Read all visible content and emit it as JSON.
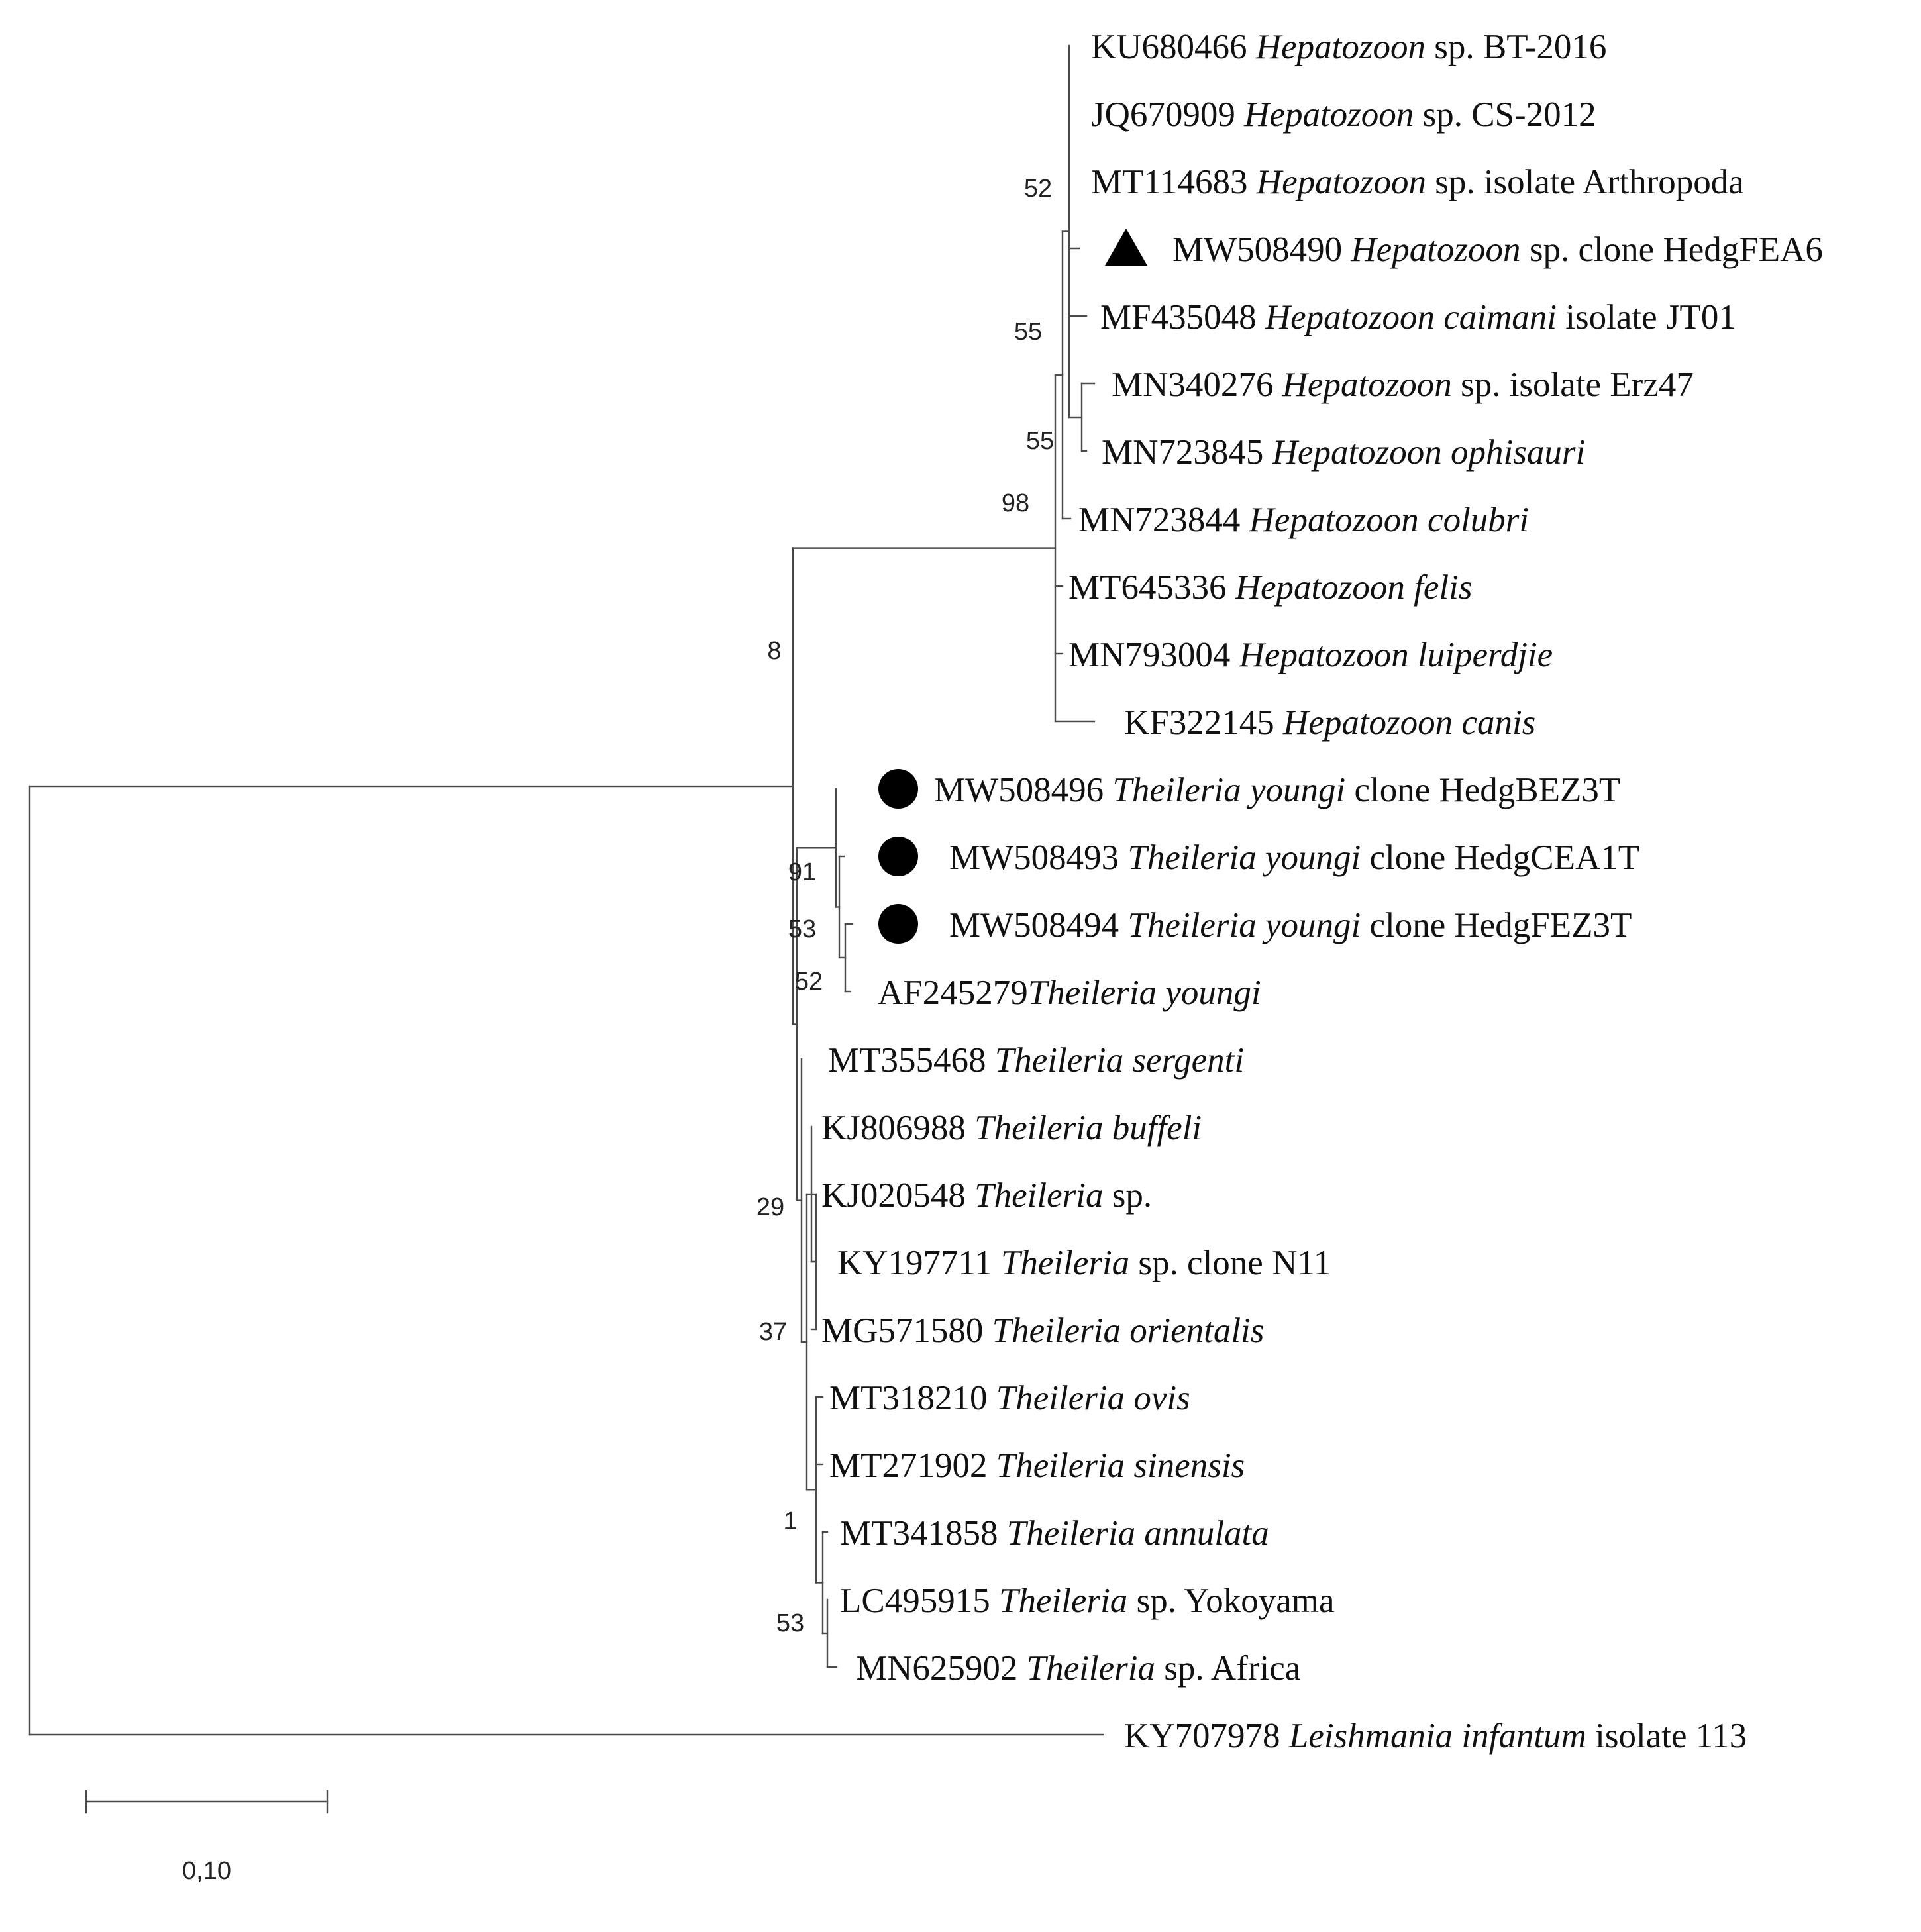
{
  "leaves": [
    {
      "id": "KU680466",
      "parts": [
        {
          "t": "KU680466 "
        },
        {
          "t": "Hepatozoon",
          "i": true
        },
        {
          "t": " sp. BT-2016"
        }
      ]
    },
    {
      "id": "JQ670909",
      "parts": [
        {
          "t": "JQ670909 "
        },
        {
          "t": "Hepatozoon",
          "i": true
        },
        {
          "t": " sp. CS-2012"
        }
      ]
    },
    {
      "id": "MT114683",
      "parts": [
        {
          "t": "MT114683 "
        },
        {
          "t": "Hepatozoon",
          "i": true
        },
        {
          "t": " sp. isolate Arthropoda"
        }
      ]
    },
    {
      "id": "MW508490",
      "marker": "triangle",
      "parts": [
        {
          "t": "MW508490 "
        },
        {
          "t": "Hepatozoon",
          "i": true
        },
        {
          "t": " sp. clone HedgFEA6"
        }
      ]
    },
    {
      "id": "MF435048",
      "parts": [
        {
          "t": "MF435048 "
        },
        {
          "t": "Hepatozoon caimani",
          "i": true
        },
        {
          "t": " isolate JT01"
        }
      ]
    },
    {
      "id": "MN340276",
      "parts": [
        {
          "t": "MN340276 "
        },
        {
          "t": "Hepatozoon",
          "i": true
        },
        {
          "t": " sp. isolate Erz47"
        }
      ]
    },
    {
      "id": "MN723845",
      "parts": [
        {
          "t": "MN723845 "
        },
        {
          "t": "Hepatozoon ophisauri",
          "i": true
        }
      ]
    },
    {
      "id": "MN723844",
      "parts": [
        {
          "t": "MN723844 "
        },
        {
          "t": "Hepatozoon colubri",
          "i": true
        }
      ]
    },
    {
      "id": "MT645336",
      "parts": [
        {
          "t": "MT645336 "
        },
        {
          "t": "Hepatozoon felis",
          "i": true
        }
      ]
    },
    {
      "id": "MN793004",
      "parts": [
        {
          "t": "MN793004 "
        },
        {
          "t": "Hepatozoon luiperdjie",
          "i": true
        }
      ]
    },
    {
      "id": "KF322145",
      "parts": [
        {
          "t": "KF322145 "
        },
        {
          "t": "Hepatozoon canis",
          "i": true
        }
      ]
    },
    {
      "id": "MW508496",
      "marker": "circle",
      "parts": [
        {
          "t": "MW508496 "
        },
        {
          "t": "Theileria youngi",
          "i": true
        },
        {
          "t": " clone HedgBEZ3T"
        }
      ]
    },
    {
      "id": "MW508493",
      "marker": "circle",
      "parts": [
        {
          "t": "MW508493 "
        },
        {
          "t": "Theileria youngi",
          "i": true
        },
        {
          "t": " clone HedgCEA1T"
        }
      ]
    },
    {
      "id": "MW508494",
      "marker": "circle",
      "parts": [
        {
          "t": "MW508494 "
        },
        {
          "t": "Theileria youngi",
          "i": true
        },
        {
          "t": " clone HedgFEZ3T"
        }
      ]
    },
    {
      "id": "AF245279",
      "parts": [
        {
          "t": "AF245279"
        },
        {
          "t": "Theileria youngi",
          "i": true
        }
      ]
    },
    {
      "id": "MT355468",
      "parts": [
        {
          "t": "MT355468 "
        },
        {
          "t": "Theileria sergenti",
          "i": true
        }
      ]
    },
    {
      "id": "KJ806988",
      "parts": [
        {
          "t": "KJ806988 "
        },
        {
          "t": "Theileria buffeli",
          "i": true
        }
      ]
    },
    {
      "id": "KJ020548",
      "parts": [
        {
          "t": "KJ020548 "
        },
        {
          "t": "Theileria",
          "i": true
        },
        {
          "t": " sp."
        }
      ]
    },
    {
      "id": "KY197711",
      "parts": [
        {
          "t": "KY197711 "
        },
        {
          "t": "Theileria",
          "i": true
        },
        {
          "t": " sp. clone N11"
        }
      ]
    },
    {
      "id": "MG571580",
      "parts": [
        {
          "t": "MG571580 "
        },
        {
          "t": "Theileria orientalis",
          "i": true
        }
      ]
    },
    {
      "id": "MT318210",
      "parts": [
        {
          "t": "MT318210 "
        },
        {
          "t": "Theileria  ovis",
          "i": true
        }
      ]
    },
    {
      "id": "MT271902",
      "parts": [
        {
          "t": "MT271902 "
        },
        {
          "t": "Theileria sinensis",
          "i": true
        }
      ]
    },
    {
      "id": "MT341858",
      "parts": [
        {
          "t": "MT341858 "
        },
        {
          "t": "Theileria annulata",
          "i": true
        }
      ]
    },
    {
      "id": "LC495915",
      "parts": [
        {
          "t": "LC495915 "
        },
        {
          "t": "Theileria",
          "i": true
        },
        {
          "t": " sp. Yokoyama"
        }
      ]
    },
    {
      "id": "MN625902",
      "parts": [
        {
          "t": "MN625902 "
        },
        {
          "t": "Theileria",
          "i": true
        },
        {
          "t": " sp. Africa"
        }
      ]
    },
    {
      "id": "KY707978",
      "parts": [
        {
          "t": "KY707978 "
        },
        {
          "t": "Leishmania infantum",
          "i": true
        },
        {
          "t": " isolate 113"
        }
      ]
    }
  ],
  "support_values": [
    "52",
    "55",
    "55",
    "98",
    "8",
    "91",
    "53",
    "52",
    "29",
    "37",
    "1",
    "53"
  ],
  "scale_bar": {
    "label": "0,10",
    "length": 0.1
  }
}
